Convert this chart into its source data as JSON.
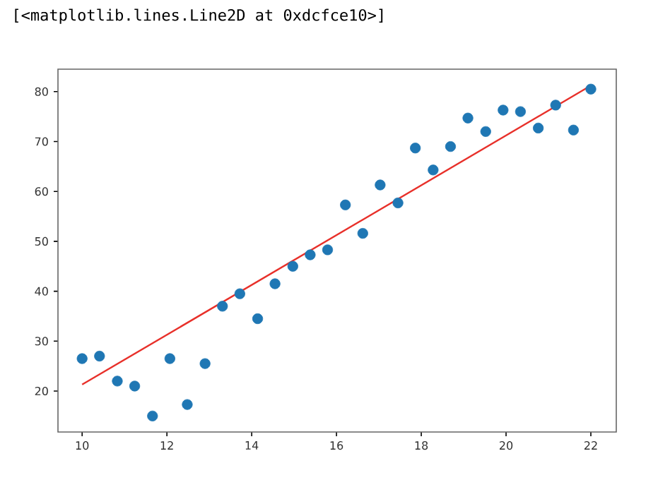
{
  "chart_data": {
    "type": "scatter",
    "annotations": [
      "[<matplotlib.lines.Line2D at 0xdcfce10>]"
    ],
    "xlim": [
      9.43,
      22.6
    ],
    "ylim": [
      11.8,
      84.5
    ],
    "xticks": [
      10,
      12,
      14,
      16,
      18,
      20,
      22
    ],
    "yticks": [
      20,
      30,
      40,
      50,
      60,
      70,
      80
    ],
    "series": [
      {
        "color": "#1f77b4",
        "x": [
          10.0,
          10.41,
          10.83,
          11.24,
          11.66,
          12.07,
          12.48,
          12.9,
          13.31,
          13.72,
          14.14,
          14.55,
          14.97,
          15.38,
          15.79,
          16.21,
          16.62,
          17.03,
          17.45,
          17.86,
          18.28,
          18.69,
          19.1,
          19.52,
          19.93,
          20.34,
          20.76,
          21.17,
          21.59,
          22.0
        ],
        "values": [
          26.5,
          27,
          22,
          21,
          15,
          26.5,
          17.3,
          25.5,
          37,
          39.5,
          34.5,
          41.5,
          45,
          47.3,
          48.3,
          57.3,
          51.6,
          61.3,
          57.7,
          68.7,
          64.3,
          69,
          74.7,
          72,
          76.3,
          76,
          72.7,
          77.3,
          72.3,
          80.5
        ]
      },
      {
        "type": "line",
        "color": "#e8302a",
        "x": [
          10,
          22
        ],
        "values": [
          21.3,
          81.2
        ]
      }
    ]
  }
}
